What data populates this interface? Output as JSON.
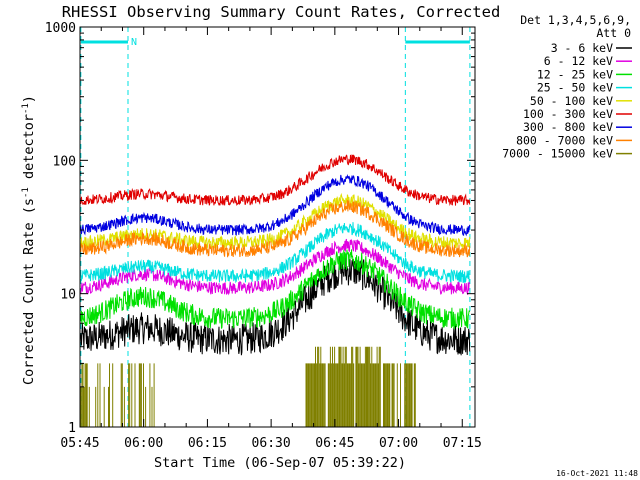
{
  "chart_data": {
    "type": "line",
    "title": "RHESSI Observing Summary Count Rates, Corrected",
    "xlabel": "Start Time (06-Sep-07 05:39:22)",
    "ylabel_main": "Corrected Count Rate (s",
    "ylabel_sup1": "-1",
    "ylabel_mid": " detector",
    "ylabel_sup2": "-1",
    "ylabel_end": ")",
    "timestamp": "16-Oct-2021 11:48",
    "y_scale": "log",
    "ylim": [
      1,
      1000
    ],
    "xlim_minutes": [
      5.0,
      98.0
    ],
    "y_ticks": [
      "1",
      "10",
      "100",
      "1000"
    ],
    "y_tick_values": [
      1,
      10,
      100,
      1000
    ],
    "x_ticks": [
      "05:45",
      "06:00",
      "06:15",
      "06:30",
      "06:45",
      "07:00",
      "07:15"
    ],
    "x_tick_minutes": [
      5,
      20,
      35,
      50,
      65,
      80,
      95
    ],
    "legend_header": [
      "Det 1,3,4,5,6,9,",
      "Att 0"
    ],
    "legend_position": "right",
    "series": [
      {
        "name": "3 - 6 keV",
        "color": "#000000",
        "base": 4.5,
        "hump1": 5.5,
        "peak": 15,
        "noise": 0.12
      },
      {
        "name": "6 - 12 keV",
        "color": "#e000e0",
        "base": 11,
        "hump1": 14,
        "peak": 23,
        "noise": 0.05
      },
      {
        "name": "12 - 25 keV",
        "color": "#00e000",
        "base": 6.5,
        "hump1": 9.5,
        "peak": 18,
        "noise": 0.08
      },
      {
        "name": "25 - 50 keV",
        "color": "#00e0e0",
        "base": 13.5,
        "hump1": 16,
        "peak": 31,
        "noise": 0.05
      },
      {
        "name": "50 - 100 keV",
        "color": "#e0e000",
        "base": 24,
        "hump1": 28,
        "peak": 50,
        "noise": 0.05
      },
      {
        "name": "100 - 300 keV",
        "color": "#e00000",
        "base": 50,
        "hump1": 56,
        "peak": 102,
        "noise": 0.04
      },
      {
        "name": "300 - 800 keV",
        "color": "#0000e0",
        "base": 30,
        "hump1": 37,
        "peak": 72,
        "noise": 0.04
      },
      {
        "name": "800 - 7000 keV",
        "color": "#ff8000",
        "base": 21,
        "hump1": 26,
        "peak": 45,
        "noise": 0.05
      },
      {
        "name": "7000 - 15000 keV",
        "color": "#808000",
        "base": 1,
        "hump1": 1,
        "peak": 4,
        "noise": 0
      }
    ],
    "event_lines_minutes": [
      5.2,
      16.3,
      81.6,
      96.8
    ],
    "attenuator_bars_minutes": [
      [
        5.2,
        16.3
      ],
      [
        81.6,
        96.8
      ]
    ],
    "attenuator_mark": "N"
  }
}
